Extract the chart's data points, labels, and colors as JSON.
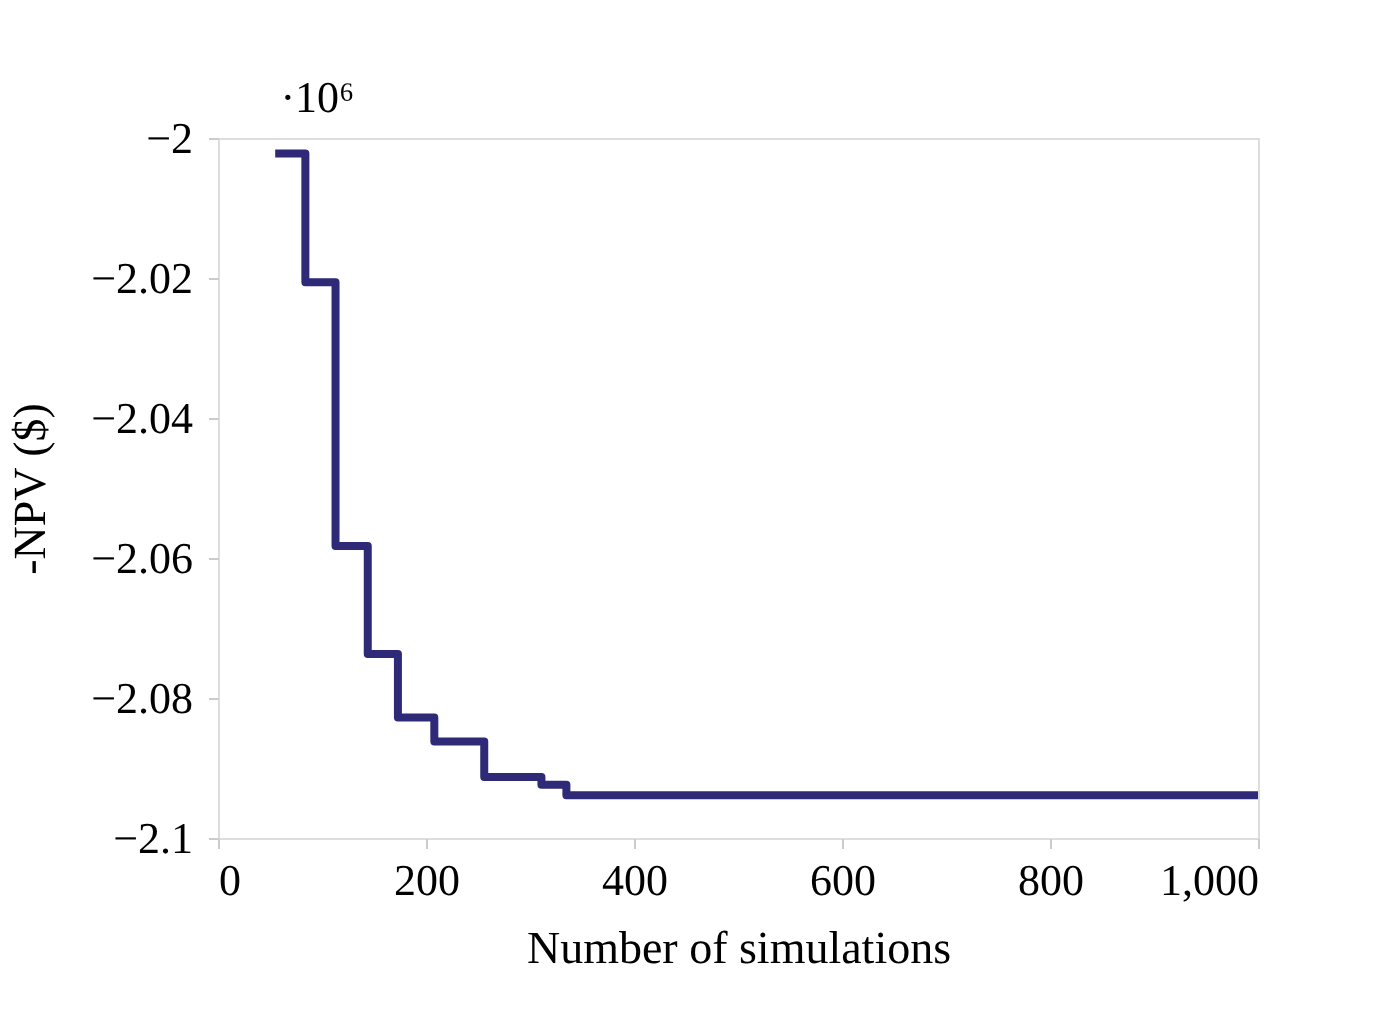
{
  "chart_data": {
    "type": "step",
    "xlabel": "Number of simulations",
    "ylabel": "-NPV ($)",
    "annotations": [
      "·10⁶"
    ],
    "x": [
      55,
      84,
      113,
      144,
      173,
      208,
      256,
      311,
      335,
      1000
    ],
    "series": [
      {
        "color": "#2e2a78",
        "values": [
          -2.0022,
          -2.0206,
          -2.0583,
          -2.0737,
          -2.0828,
          -2.0862,
          -2.0913,
          -2.0924,
          -2.0939,
          -2.0939
        ]
      }
    ],
    "xlim": [
      0,
      1000
    ],
    "xticks": [
      0,
      200,
      400,
      600,
      {
        "value": 800,
        "label": "800"
      },
      {
        "value": 1000,
        "label": "1,000"
      }
    ],
    "ylim": [
      -2.1,
      -2
    ],
    "yticks": [
      {
        "value": -2.1,
        "label": "−2.1"
      },
      {
        "value": -2.08,
        "label": "−2.08"
      },
      {
        "value": -2.06,
        "label": "−2.06"
      },
      {
        "value": -2.04,
        "label": "−2.04"
      },
      {
        "value": -2.02,
        "label": "−2.02"
      },
      {
        "value": -2,
        "label": "−2"
      }
    ],
    "grid": false,
    "legend": false,
    "marker": "none",
    "line_style": "solid"
  }
}
